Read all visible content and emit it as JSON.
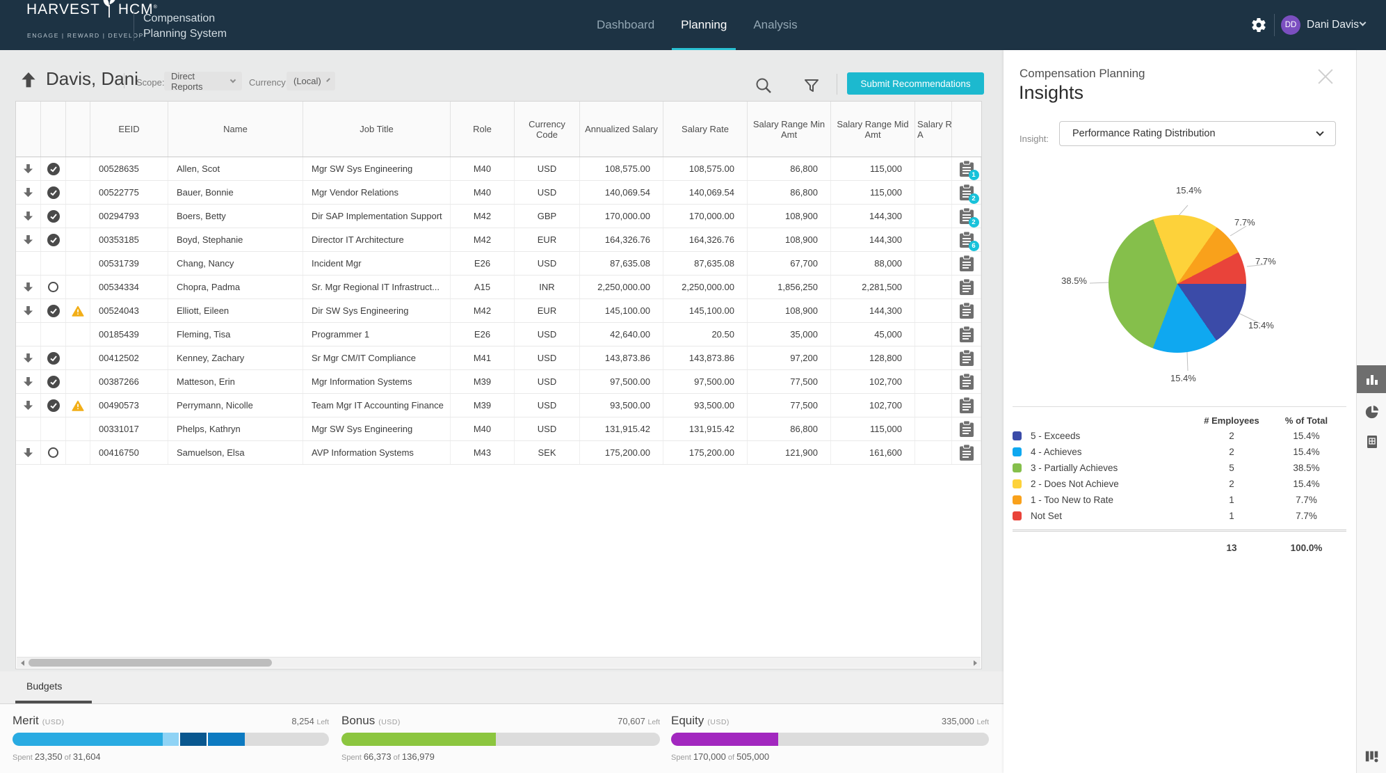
{
  "header": {
    "brand_left": "HARVEST",
    "brand_right": "HCM",
    "brand_mark": "®",
    "tagline": "ENGAGE | REWARD | DEVELOP",
    "app_title_line1": "Compensation",
    "app_title_line2": "Planning System",
    "nav": [
      {
        "label": "Dashboard",
        "active": false
      },
      {
        "label": "Planning",
        "active": true
      },
      {
        "label": "Analysis",
        "active": false
      }
    ],
    "user": {
      "initials": "DD",
      "name": "Dani Davis"
    }
  },
  "toolbar": {
    "title": "Davis, Dani",
    "scope_label": "Scope:",
    "scope_value": "Direct Reports",
    "currency_label": "Currency:",
    "currency_value": "(Local)",
    "submit_label": "Submit Recommendations"
  },
  "table": {
    "columns": [
      "",
      "",
      "",
      "EEID",
      "Name",
      "Job Title",
      "Role",
      "Currency Code",
      "Annualized Salary",
      "Salary Rate",
      "Salary Range Min Amt",
      "Salary Range Mid Amt",
      "Salary R\nA",
      ""
    ],
    "rows": [
      {
        "arrow": true,
        "status": "check",
        "warn": false,
        "badge": "1",
        "cells": [
          "00528635",
          "Allen, Scot",
          "Mgr SW Sys Engineering",
          "M40",
          "USD",
          "108,575.00",
          "108,575.00",
          "86,800",
          "115,000"
        ]
      },
      {
        "arrow": true,
        "status": "check",
        "warn": false,
        "badge": "2",
        "cells": [
          "00522775",
          "Bauer, Bonnie",
          "Mgr Vendor Relations",
          "M40",
          "USD",
          "140,069.54",
          "140,069.54",
          "86,800",
          "115,000"
        ]
      },
      {
        "arrow": true,
        "status": "check",
        "warn": false,
        "badge": "2",
        "cells": [
          "00294793",
          "Boers, Betty",
          "Dir SAP Implementation Support",
          "M42",
          "GBP",
          "170,000.00",
          "170,000.00",
          "108,900",
          "144,300"
        ]
      },
      {
        "arrow": true,
        "status": "check",
        "warn": false,
        "badge": "6",
        "cells": [
          "00353185",
          "Boyd, Stephanie",
          "Director IT Architecture",
          "M42",
          "EUR",
          "164,326.76",
          "164,326.76",
          "108,900",
          "144,300"
        ]
      },
      {
        "arrow": false,
        "status": "none",
        "warn": false,
        "badge": null,
        "cells": [
          "00531739",
          "Chang, Nancy",
          "Incident Mgr",
          "E26",
          "USD",
          "87,635.08",
          "87,635.08",
          "67,700",
          "88,000"
        ]
      },
      {
        "arrow": true,
        "status": "circle",
        "warn": false,
        "badge": null,
        "cells": [
          "00534334",
          "Chopra, Padma",
          "Sr. Mgr Regional IT Infrastruct...",
          "A15",
          "INR",
          "2,250,000.00",
          "2,250,000.00",
          "1,856,250",
          "2,281,500"
        ]
      },
      {
        "arrow": true,
        "status": "check",
        "warn": true,
        "badge": null,
        "cells": [
          "00524043",
          "Elliott, Eileen",
          "Dir SW Sys Engineering",
          "M42",
          "EUR",
          "145,100.00",
          "145,100.00",
          "108,900",
          "144,300"
        ]
      },
      {
        "arrow": false,
        "status": "none",
        "warn": false,
        "badge": null,
        "cells": [
          "00185439",
          "Fleming, Tisa",
          "Programmer 1",
          "E26",
          "USD",
          "42,640.00",
          "20.50",
          "35,000",
          "45,000"
        ]
      },
      {
        "arrow": true,
        "status": "check",
        "warn": false,
        "badge": null,
        "cells": [
          "00412502",
          "Kenney, Zachary",
          "Sr Mgr CM/IT Compliance",
          "M41",
          "USD",
          "143,873.86",
          "143,873.86",
          "97,200",
          "128,800"
        ]
      },
      {
        "arrow": true,
        "status": "check",
        "warn": false,
        "badge": null,
        "cells": [
          "00387266",
          "Matteson, Erin",
          "Mgr Information Systems",
          "M39",
          "USD",
          "97,500.00",
          "97,500.00",
          "77,500",
          "102,700"
        ]
      },
      {
        "arrow": true,
        "status": "check",
        "warn": true,
        "badge": null,
        "cells": [
          "00490573",
          "Perrymann, Nicolle",
          "Team Mgr IT Accounting Finance",
          "M39",
          "USD",
          "93,500.00",
          "93,500.00",
          "77,500",
          "102,700"
        ]
      },
      {
        "arrow": false,
        "status": "none",
        "warn": false,
        "badge": null,
        "cells": [
          "00331017",
          "Phelps, Kathryn",
          "Mgr SW Sys Engineering",
          "M40",
          "USD",
          "131,915.42",
          "131,915.42",
          "86,800",
          "115,000"
        ]
      },
      {
        "arrow": true,
        "status": "circle",
        "warn": false,
        "badge": null,
        "cells": [
          "00416750",
          "Samuelson, Elsa",
          "AVP Information Systems",
          "M43",
          "SEK",
          "175,200.00",
          "175,200.00",
          "121,900",
          "161,600"
        ]
      }
    ]
  },
  "budgets": {
    "tab_label": "Budgets",
    "items": [
      {
        "name": "Merit",
        "unit": "(USD)",
        "left_value": "8,254",
        "left_word": "Left",
        "spent_word": "Spent",
        "spent_value": "23,350",
        "of_word": "of",
        "total_value": "31,604",
        "segments": [
          {
            "color": "#29abe2",
            "pct": 47.5,
            "gap": false
          },
          {
            "color": "#8fd3f5",
            "pct": 5.0,
            "gap": false
          },
          {
            "color": "#09578f",
            "pct": 8.9,
            "gap": true
          },
          {
            "color": "#0d7ac1",
            "pct": 11.9,
            "gap": true
          }
        ]
      },
      {
        "name": "Bonus",
        "unit": "(USD)",
        "left_value": "70,607",
        "left_word": "Left",
        "spent_word": "Spent",
        "spent_value": "66,373",
        "of_word": "of",
        "total_value": "136,979",
        "segments": [
          {
            "color": "#8cc63f",
            "pct": 48.5,
            "gap": false
          }
        ]
      },
      {
        "name": "Equity",
        "unit": "(USD)",
        "left_value": "335,000",
        "left_word": "Left",
        "spent_word": "Spent",
        "spent_value": "170,000",
        "of_word": "of",
        "total_value": "505,000",
        "segments": [
          {
            "color": "#a227bf",
            "pct": 33.6,
            "gap": false
          }
        ]
      }
    ]
  },
  "insights": {
    "panel_title": "Compensation Planning",
    "panel_subtitle": "Insights",
    "insight_label": "Insight:",
    "dropdown_value": "Performance Rating Distribution",
    "callouts": [
      {
        "pos": "top",
        "text": "15.4%"
      },
      {
        "pos": "upper-right",
        "text": "7.7%"
      },
      {
        "pos": "right",
        "text": "7.7%"
      },
      {
        "pos": "lower-right",
        "text": "15.4%"
      },
      {
        "pos": "bottom",
        "text": "15.4%"
      },
      {
        "pos": "left",
        "text": "38.5%"
      }
    ],
    "legend": {
      "col_employees": "# Employees",
      "col_pct": "% of Total",
      "total_employees": "13",
      "total_pct": "100.0%"
    }
  },
  "chart_data": {
    "type": "pie",
    "title": "Performance Rating Distribution",
    "labels": [
      "5 - Exceeds",
      "4 - Achieves",
      "3 - Partially Achieves",
      "2 - Does Not Achieve",
      "1 - Too New to Rate",
      "Not Set"
    ],
    "values": [
      2,
      2,
      5,
      2,
      1,
      1
    ],
    "percents": [
      15.4,
      15.4,
      38.5,
      15.4,
      7.7,
      7.7
    ],
    "colors": [
      "#3b4ba8",
      "#0fa8f0",
      "#85bf4b",
      "#fdd23a",
      "#f9a11b",
      "#e9433a"
    ],
    "total": 13,
    "start": "3-oclock-clockwise",
    "legend_position": "bottom-table"
  },
  "side_strip": {
    "items": [
      {
        "name": "bar-chart",
        "active": true
      },
      {
        "name": "pie-chart",
        "active": false
      },
      {
        "name": "report",
        "active": false
      }
    ],
    "bottom_item": "column-settings"
  }
}
